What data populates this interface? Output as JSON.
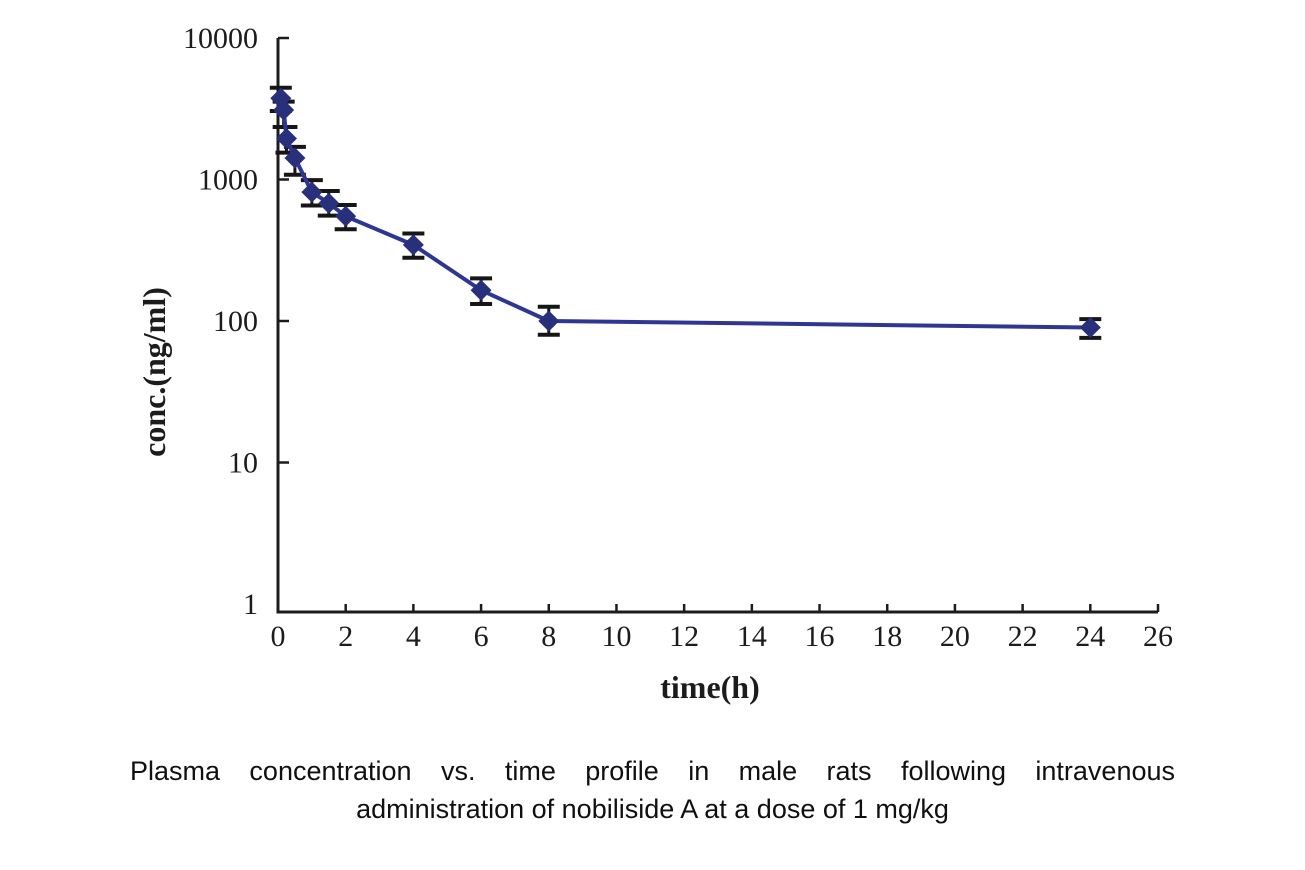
{
  "caption": {
    "line1": "Plasma concentration vs. time profile in male rats following intravenous",
    "line2": "administration of nobiliside A at a dose of 1 mg/kg"
  },
  "chart_data": {
    "type": "line",
    "title": "",
    "xlabel": "time(h)",
    "ylabel": "conc.(ng/ml)",
    "y_scale": "log",
    "xlim": [
      0,
      26
    ],
    "ylim": [
      1,
      10000
    ],
    "x_ticks": [
      0,
      2,
      4,
      6,
      8,
      10,
      12,
      14,
      16,
      18,
      20,
      22,
      24,
      26
    ],
    "y_ticks": [
      1,
      10,
      100,
      1000,
      10000
    ],
    "grid": false,
    "legend": false,
    "marker": "diamond",
    "x": [
      0.083,
      0.167,
      0.25,
      0.5,
      1,
      1.5,
      2,
      4,
      6,
      8,
      24
    ],
    "y": [
      3750,
      3100,
      1950,
      1420,
      815,
      680,
      550,
      345,
      165,
      100,
      90
    ],
    "y_err_high": [
      4450,
      3550,
      2350,
      1700,
      990,
      830,
      660,
      415,
      200,
      126,
      103
    ],
    "y_err_low": [
      3050,
      2350,
      1550,
      1080,
      655,
      555,
      445,
      280,
      132,
      80,
      76
    ],
    "colors": {
      "line": "#2e3694",
      "marker": "#28307c",
      "error_bar": "#161616",
      "axis": "#1c1c1c",
      "text": "#1c1c1c"
    }
  }
}
